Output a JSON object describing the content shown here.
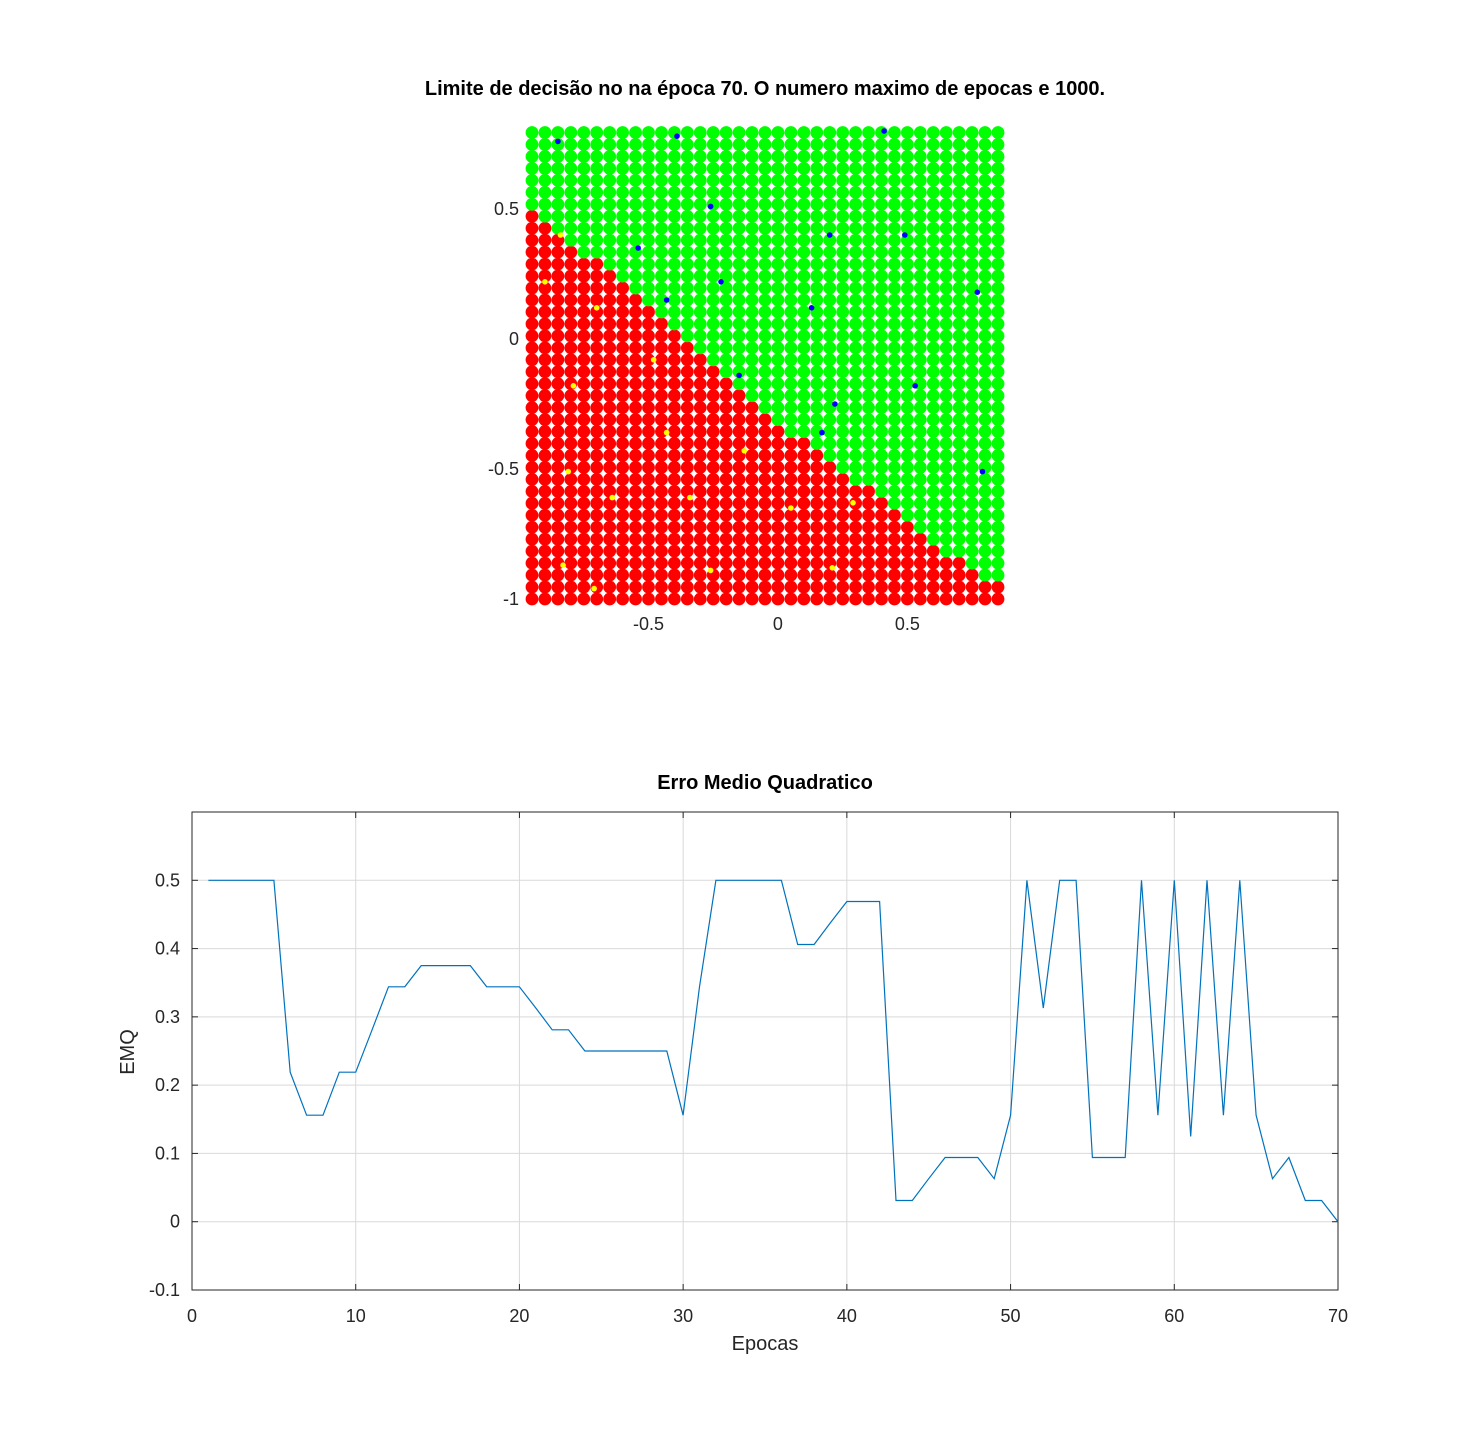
{
  "colors": {
    "class_a": "#ff0000",
    "class_b": "#00ff00",
    "points_a": "#ffff00",
    "points_b": "#0000ff",
    "line": "#0072bd",
    "axis": "#262626",
    "grid": "#d9d9d9"
  },
  "chart_data": [
    {
      "type": "scatter",
      "title": "Limite de decisão no na época 70. O numero maximo de epocas e 1000.",
      "xlabel": "",
      "ylabel": "",
      "xlim": [
        -0.97,
        0.85
      ],
      "ylim": [
        -1.0,
        0.83
      ],
      "xticks": [
        -0.5,
        0,
        0.5
      ],
      "xtick_labels": [
        "-0.5",
        "0",
        "0.5"
      ],
      "yticks": [
        -1,
        -0.5,
        0,
        0.5
      ],
      "ytick_labels": [
        "-1",
        "-0.5",
        "0",
        "0.5"
      ],
      "grid": false,
      "decision_grid": {
        "x_start": -0.95,
        "x_step": 0.05,
        "nx": 37,
        "y_start": -1.0,
        "y_step": 0.046,
        "ny": 40,
        "boundary": [
          {
            "x": -0.95,
            "y": 0.48
          },
          {
            "x": -0.8,
            "y": 0.36
          },
          {
            "x": -0.6,
            "y": 0.22
          },
          {
            "x": -0.5,
            "y": 0.12
          },
          {
            "x": -0.4,
            "y": 0.02
          },
          {
            "x": -0.25,
            "y": -0.12
          },
          {
            "x": -0.05,
            "y": -0.3
          },
          {
            "x": 0.15,
            "y": -0.42
          },
          {
            "x": 0.3,
            "y": -0.55
          },
          {
            "x": 0.45,
            "y": -0.65
          },
          {
            "x": 0.65,
            "y": -0.82
          },
          {
            "x": 0.8,
            "y": -0.94
          }
        ]
      },
      "series": [
        {
          "class": "class_a",
          "points": [
            [
              -0.84,
              0.4
            ],
            [
              -0.9,
              0.22
            ],
            [
              -0.7,
              0.12
            ],
            [
              -0.48,
              -0.08
            ],
            [
              -0.79,
              -0.18
            ],
            [
              -0.43,
              -0.36
            ],
            [
              -0.13,
              -0.43
            ],
            [
              -0.81,
              -0.51
            ],
            [
              -0.64,
              -0.61
            ],
            [
              -0.34,
              -0.61
            ],
            [
              0.05,
              -0.65
            ],
            [
              0.29,
              -0.63
            ],
            [
              -0.83,
              -0.87
            ],
            [
              -0.26,
              -0.89
            ],
            [
              0.21,
              -0.88
            ],
            [
              -0.71,
              -0.96
            ]
          ]
        },
        {
          "class": "class_b",
          "points": [
            [
              -0.85,
              0.76
            ],
            [
              -0.39,
              0.78
            ],
            [
              0.41,
              0.8
            ],
            [
              -0.26,
              0.51
            ],
            [
              -0.54,
              0.35
            ],
            [
              0.2,
              0.4
            ],
            [
              0.49,
              0.4
            ],
            [
              -0.22,
              0.22
            ],
            [
              0.77,
              0.18
            ],
            [
              -0.43,
              0.15
            ],
            [
              0.13,
              0.12
            ],
            [
              -0.15,
              -0.14
            ],
            [
              0.53,
              -0.18
            ],
            [
              0.22,
              -0.25
            ],
            [
              0.17,
              -0.36
            ],
            [
              0.79,
              -0.51
            ]
          ]
        }
      ]
    },
    {
      "type": "line",
      "title": "Erro Medio Quadratico",
      "xlabel": "Epocas",
      "ylabel": "EMQ",
      "xlim": [
        0,
        70
      ],
      "ylim": [
        -0.1,
        0.6
      ],
      "xticks": [
        0,
        10,
        20,
        30,
        40,
        50,
        60,
        70
      ],
      "xtick_labels": [
        "0",
        "10",
        "20",
        "30",
        "40",
        "50",
        "60",
        "70"
      ],
      "yticks": [
        -0.1,
        0,
        0.1,
        0.2,
        0.3,
        0.4,
        0.5
      ],
      "ytick_labels": [
        "-0.1",
        "0",
        "0.1",
        "0.2",
        "0.3",
        "0.4",
        "0.5"
      ],
      "grid": true,
      "x": [
        1,
        2,
        3,
        4,
        5,
        6,
        7,
        8,
        9,
        10,
        11,
        12,
        13,
        14,
        15,
        16,
        17,
        18,
        19,
        20,
        21,
        22,
        23,
        24,
        25,
        26,
        27,
        28,
        29,
        30,
        31,
        32,
        33,
        34,
        35,
        36,
        37,
        38,
        39,
        40,
        41,
        42,
        43,
        44,
        45,
        46,
        47,
        48,
        49,
        50,
        51,
        52,
        53,
        54,
        55,
        56,
        57,
        58,
        59,
        60,
        61,
        62,
        63,
        64,
        65,
        66,
        67,
        68,
        69,
        70
      ],
      "values": [
        0.5,
        0.5,
        0.5,
        0.5,
        0.5,
        0.219,
        0.156,
        0.156,
        0.219,
        0.219,
        0.281,
        0.344,
        0.344,
        0.375,
        0.375,
        0.375,
        0.375,
        0.344,
        0.344,
        0.344,
        0.313,
        0.281,
        0.281,
        0.25,
        0.25,
        0.25,
        0.25,
        0.25,
        0.25,
        0.156,
        0.344,
        0.5,
        0.5,
        0.5,
        0.5,
        0.5,
        0.406,
        0.406,
        0.438,
        0.469,
        0.469,
        0.469,
        0.031,
        0.031,
        0.063,
        0.094,
        0.094,
        0.094,
        0.063,
        0.156,
        0.5,
        0.313,
        0.5,
        0.5,
        0.094,
        0.094,
        0.094,
        0.5,
        0.156,
        0.5,
        0.125,
        0.5,
        0.156,
        0.5,
        0.156,
        0.063,
        0.094,
        0.031,
        0.031,
        0.0
      ]
    }
  ]
}
